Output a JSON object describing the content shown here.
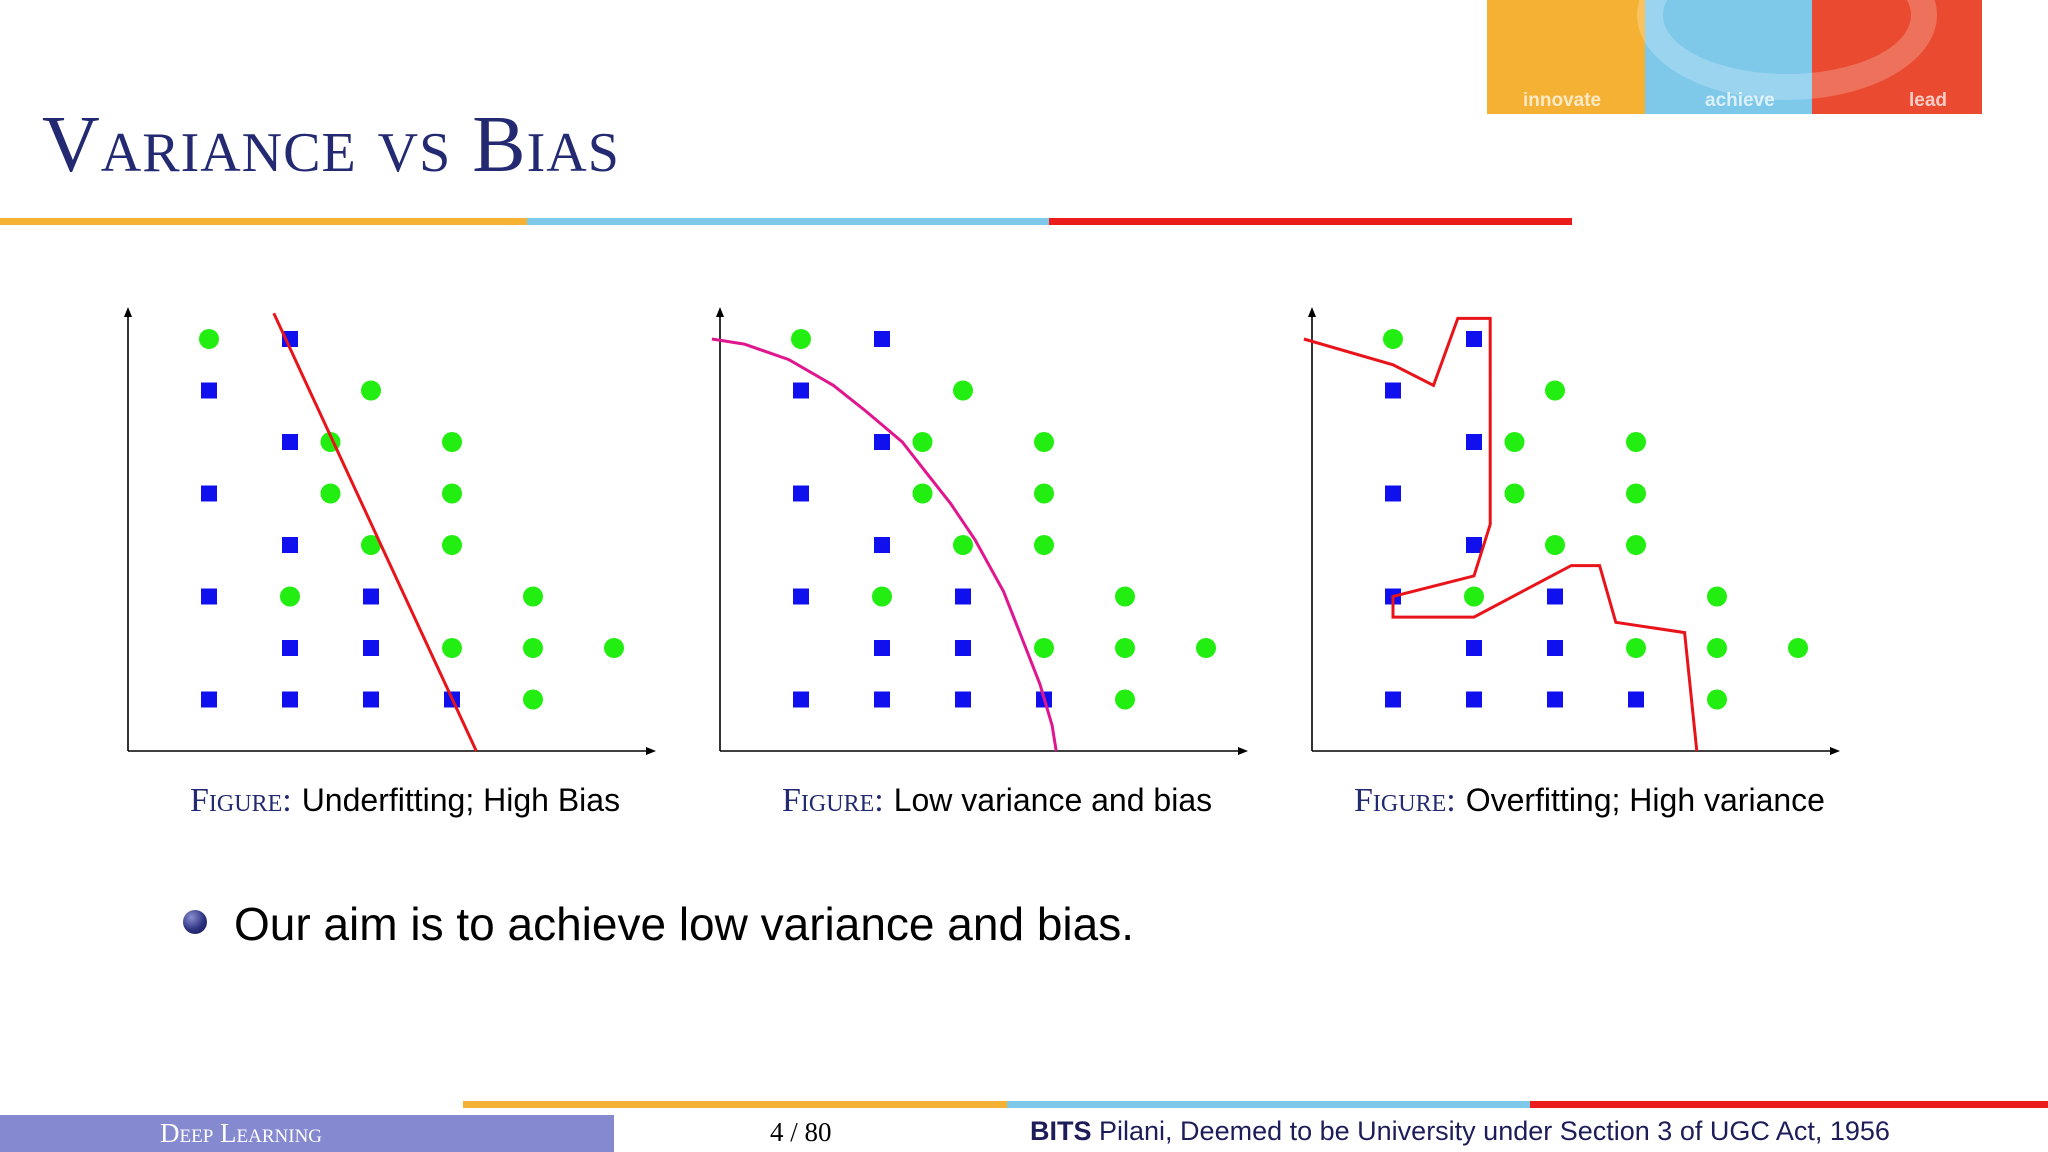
{
  "slide": {
    "title": "Variance vs Bias",
    "bullet": "Our aim is to achieve low variance and bias."
  },
  "logo": {
    "words": [
      "innovate",
      "achieve",
      "lead"
    ]
  },
  "colors": {
    "orange": "#f5b133",
    "blue": "#7ec8ea",
    "red": "#ea1c1c",
    "title": "#232a72",
    "square": "#1010ee",
    "circle": "#22ee11"
  },
  "figures": [
    {
      "label": "Figure:",
      "caption": "Underfitting; High Bias",
      "boundary_color": "#e8141a"
    },
    {
      "label": "Figure:",
      "caption": "Low variance and bias",
      "boundary_color": "#e0168f"
    },
    {
      "label": "Figure:",
      "caption": "Overfitting; High variance",
      "boundary_color": "#e8141a"
    }
  ],
  "chart_data": {
    "type": "scatter",
    "series": [
      {
        "name": "",
        "marker": "square",
        "color": "#1010ee",
        "points": [
          [
            2,
            8
          ],
          [
            1,
            7
          ],
          [
            2,
            6
          ],
          [
            1,
            5
          ],
          [
            2,
            4
          ],
          [
            1,
            3
          ],
          [
            3,
            3
          ],
          [
            2,
            2
          ],
          [
            3,
            2
          ],
          [
            1,
            1
          ],
          [
            2,
            1
          ],
          [
            3,
            1
          ],
          [
            4,
            1
          ]
        ]
      },
      {
        "name": "",
        "marker": "circle",
        "color": "#22ee11",
        "points": [
          [
            1,
            8
          ],
          [
            3,
            7
          ],
          [
            2.5,
            6
          ],
          [
            4,
            6
          ],
          [
            2.5,
            5
          ],
          [
            4,
            5
          ],
          [
            3,
            4
          ],
          [
            4,
            4
          ],
          [
            2,
            3
          ],
          [
            5,
            3
          ],
          [
            4,
            2
          ],
          [
            5,
            2
          ],
          [
            6,
            2
          ],
          [
            5,
            1
          ]
        ]
      }
    ]
  },
  "footer": {
    "course": "Deep Learning",
    "page": "4 / 80",
    "institution_bold": "BITS",
    "institution_rest": " Pilani, Deemed to be University under Section 3 of UGC Act, 1956"
  }
}
